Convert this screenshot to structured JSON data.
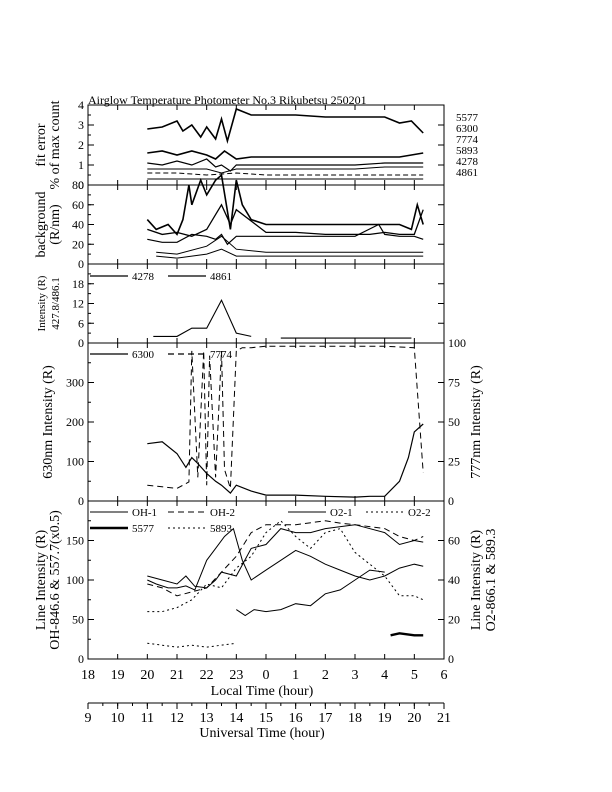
{
  "figure": {
    "title": "Airglow Temperature Photometer No.3   Rikubetsu     250201",
    "local_time_axis": {
      "label": "Local Time (hour)",
      "tick_labels": [
        "18",
        "19",
        "20",
        "21",
        "22",
        "23",
        "0",
        "1",
        "2",
        "3",
        "4",
        "5",
        "6"
      ]
    },
    "universal_time_axis": {
      "label": "Universal Time (hour)",
      "tick_labels": [
        "9",
        "10",
        "11",
        "12",
        "13",
        "14",
        "15",
        "16",
        "17",
        "18",
        "19",
        "20",
        "21"
      ]
    }
  },
  "chart_data": [
    {
      "type": "line",
      "panel": "fit-error",
      "ylabel": "fit error\n% of max count",
      "ylim": [
        0,
        4
      ],
      "ytick_labels": [
        "0",
        "1",
        "2",
        "3",
        "4"
      ],
      "right_labels": [
        "5577",
        "6300",
        "7774",
        "5893",
        "4278",
        "4861"
      ],
      "series": [
        {
          "name": "5577",
          "x": [
            20.0,
            20.5,
            21.0,
            21.2,
            21.5,
            21.8,
            22.0,
            22.3,
            22.5,
            22.7,
            23.0,
            23.5,
            24.0,
            25.0,
            26.0,
            27.0,
            28.0,
            28.5,
            28.9,
            29.3
          ],
          "y": [
            2.8,
            2.9,
            3.2,
            2.7,
            3.0,
            2.4,
            2.9,
            2.3,
            3.3,
            2.2,
            3.8,
            3.5,
            3.5,
            3.5,
            3.4,
            3.4,
            3.4,
            3.1,
            3.2,
            2.6
          ]
        },
        {
          "name": "6300",
          "x": [
            20.0,
            20.5,
            21.0,
            21.5,
            22.0,
            22.3,
            22.6,
            23.0,
            23.5,
            24.0,
            25.0,
            26.0,
            27.0,
            28.0,
            28.5,
            28.9,
            29.3
          ],
          "y": [
            1.6,
            1.7,
            1.5,
            1.7,
            1.5,
            1.3,
            1.7,
            1.3,
            1.4,
            1.4,
            1.4,
            1.4,
            1.4,
            1.4,
            1.4,
            1.5,
            1.6
          ]
        },
        {
          "name": "7774",
          "x": [
            20.0,
            20.5,
            21.0,
            21.5,
            22.0,
            22.3,
            22.5,
            22.8,
            23.0,
            24.0,
            25.0,
            26.0,
            27.0,
            28.0,
            28.5,
            29.3
          ],
          "y": [
            1.1,
            1.0,
            1.2,
            1.0,
            1.3,
            0.9,
            1.0,
            0.7,
            1.0,
            1.0,
            1.0,
            1.0,
            1.0,
            1.1,
            1.1,
            1.1
          ]
        },
        {
          "name": "5893",
          "x": [
            20.0,
            21.0,
            22.0,
            22.5,
            23.0,
            24.0,
            25.0,
            26.0,
            27.0,
            28.0,
            29.3
          ],
          "y": [
            0.8,
            0.8,
            0.8,
            0.6,
            0.8,
            0.8,
            0.8,
            0.8,
            0.8,
            0.9,
            0.9
          ]
        },
        {
          "name": "4278",
          "x": [
            20.0,
            21.0,
            22.0,
            23.0,
            24.0,
            25.0,
            26.0,
            27.0,
            28.0,
            29.3
          ],
          "y": [
            0.6,
            0.6,
            0.5,
            0.6,
            0.5,
            0.5,
            0.5,
            0.5,
            0.5,
            0.5
          ]
        },
        {
          "name": "4861",
          "x": [
            20.0,
            21.0,
            22.0,
            23.0,
            24.0,
            25.0,
            26.0,
            27.0,
            28.0,
            29.3
          ],
          "y": [
            0.3,
            0.3,
            0.3,
            0.3,
            0.3,
            0.3,
            0.3,
            0.3,
            0.3,
            0.3
          ]
        }
      ]
    },
    {
      "type": "line",
      "panel": "background",
      "ylabel": "background\n(R/nm)",
      "ylim": [
        0,
        80
      ],
      "ytick_labels": [
        "0",
        "20",
        "40",
        "60",
        "80"
      ],
      "series": [
        {
          "x": [
            20.0,
            20.3,
            20.7,
            21.0,
            21.2,
            21.4,
            21.5,
            21.8,
            22.0,
            22.3,
            22.5,
            22.8,
            23.0,
            23.2,
            23.5,
            24.0,
            25.0,
            26.0,
            27.0,
            27.5,
            28.0,
            28.5,
            28.9,
            29.1,
            29.3
          ],
          "y": [
            45,
            35,
            40,
            30,
            45,
            80,
            60,
            85,
            70,
            85,
            90,
            35,
            85,
            60,
            45,
            40,
            40,
            40,
            40,
            40,
            40,
            40,
            35,
            60,
            40
          ]
        },
        {
          "x": [
            20.0,
            20.5,
            21.0,
            21.5,
            22.0,
            22.3,
            22.5,
            22.8,
            23.0,
            24.0,
            25.0,
            26.0,
            27.0,
            27.5,
            28.0,
            28.5,
            29.0,
            29.3
          ],
          "y": [
            35,
            30,
            32,
            28,
            35,
            50,
            60,
            40,
            55,
            32,
            32,
            30,
            30,
            30,
            32,
            30,
            30,
            55
          ]
        },
        {
          "x": [
            20.0,
            20.5,
            21.0,
            21.5,
            22.0,
            22.3,
            22.5,
            22.7,
            23.0,
            24.0,
            25.0,
            26.0,
            27.0,
            27.8,
            28.0,
            28.5,
            29.0,
            29.3
          ],
          "y": [
            25,
            22,
            22,
            30,
            28,
            25,
            30,
            20,
            28,
            28,
            28,
            28,
            28,
            40,
            30,
            28,
            28,
            25
          ]
        },
        {
          "x": [
            20.3,
            21.0,
            22.0,
            22.5,
            23.0,
            24.0,
            25.0,
            26.0,
            27.0,
            28.0,
            29.3
          ],
          "y": [
            12,
            10,
            18,
            28,
            15,
            12,
            12,
            12,
            12,
            12,
            12
          ]
        },
        {
          "x": [
            20.3,
            21.0,
            22.0,
            22.5,
            23.0,
            24.0,
            25.0,
            26.0,
            27.0,
            28.0,
            29.3
          ],
          "y": [
            8,
            6,
            10,
            15,
            8,
            8,
            8,
            8,
            8,
            8,
            8
          ]
        }
      ]
    },
    {
      "type": "line",
      "panel": "intensity-4278-4861",
      "ylabel": "Intensity (R)\n427.8/486.1",
      "ylim": [
        0,
        24
      ],
      "ytick_labels": [
        "0",
        "6",
        "12",
        "18"
      ],
      "series": [
        {
          "name": "4278",
          "x": [
            20.2,
            21.0,
            21.5,
            22.0,
            22.5,
            23.0,
            23.5
          ],
          "y": [
            2,
            2,
            4.5,
            4.5,
            13,
            3,
            2
          ]
        },
        {
          "name": "4861",
          "x": [
            24.5,
            25.0,
            26.0,
            27.0,
            28.0,
            28.9
          ],
          "y": [
            1.5,
            1.5,
            1.5,
            1.5,
            1.5,
            1.5
          ]
        }
      ]
    },
    {
      "type": "line",
      "panel": "intensity-6300-7774",
      "ylabel": "630nm Intensity (R)",
      "ylabel_right": "777nm Intensity (R)",
      "ylim": [
        0,
        400
      ],
      "ylim_right": [
        0,
        100
      ],
      "ytick_labels": [
        "0",
        "100",
        "200",
        "300"
      ],
      "ytick_labels_right": [
        "0",
        "25",
        "50",
        "75",
        "100"
      ],
      "series": [
        {
          "name": "6300",
          "x": [
            20.0,
            20.5,
            21.0,
            21.3,
            21.5,
            21.7,
            22.0,
            22.3,
            22.5,
            22.8,
            23.0,
            23.5,
            24.0,
            25.0,
            26.0,
            27.0,
            27.5,
            28.0,
            28.5,
            28.8,
            29.0,
            29.3
          ],
          "y": [
            145,
            150,
            120,
            85,
            110,
            95,
            70,
            50,
            40,
            20,
            40,
            25,
            15,
            15,
            12,
            10,
            12,
            12,
            50,
            110,
            175,
            195
          ]
        },
        {
          "name": "7774",
          "x": [
            20.0,
            21.0,
            21.4,
            21.5,
            21.7,
            21.9,
            22.0,
            22.1,
            22.3,
            22.5,
            22.6,
            22.8,
            23.0,
            23.2,
            23.5,
            24.0,
            25.0,
            26.0,
            27.0,
            28.0,
            29.0,
            29.3
          ],
          "y": [
            10,
            8,
            12,
            95,
            15,
            95,
            10,
            92,
            15,
            95,
            20,
            8,
            95,
            97,
            97,
            98,
            98,
            98,
            98,
            98,
            97,
            18
          ]
        }
      ]
    },
    {
      "type": "line",
      "panel": "line-intensity",
      "ylabel": "Line Intensity (R)\nOH-846.6 & 557.7(x0.5)",
      "ylabel_right": "Line Intensity (R)\nO2-866.1 & 589.3",
      "ylim": [
        0,
        200
      ],
      "ylim_right": [
        0,
        80
      ],
      "ytick_labels": [
        "0",
        "50",
        "100",
        "150"
      ],
      "ytick_labels_right": [
        "0",
        "20",
        "40",
        "60"
      ],
      "legend": [
        "OH-1",
        "OH-2",
        "O2-1",
        "O2-2",
        "5577",
        "5893"
      ],
      "series": [
        {
          "name": "OH-1",
          "x": [
            20.0,
            20.5,
            21.0,
            21.3,
            21.6,
            22.0,
            22.3,
            22.5,
            23.0,
            23.5,
            24.0,
            24.5,
            25.0,
            25.5,
            26.0,
            27.0,
            28.0,
            28.5,
            29.0,
            29.3
          ],
          "y": [
            105,
            100,
            95,
            105,
            92,
            90,
            100,
            110,
            105,
            140,
            145,
            165,
            160,
            160,
            165,
            170,
            160,
            145,
            150,
            148
          ]
        },
        {
          "name": "OH-2",
          "x": [
            20.0,
            20.5,
            21.0,
            21.5,
            22.0,
            22.5,
            23.0,
            23.5,
            24.0,
            25.0,
            26.0,
            26.5,
            27.0,
            28.0,
            28.5,
            29.0,
            29.3
          ],
          "y": [
            95,
            90,
            80,
            85,
            90,
            110,
            130,
            160,
            170,
            170,
            175,
            172,
            170,
            165,
            155,
            150,
            155
          ]
        },
        {
          "name": "O2-1",
          "x": [
            23.0,
            23.3,
            23.6,
            24.0,
            24.5,
            25.0,
            25.5,
            26.0,
            26.5,
            27.0,
            27.5,
            28.0
          ],
          "y": [
            25,
            22,
            25,
            24,
            25,
            28,
            27,
            33,
            35,
            40,
            45,
            44
          ]
        },
        {
          "name": "O2-2",
          "x": [
            20.0,
            20.5,
            21.0,
            21.5,
            22.0,
            22.5,
            23.0
          ],
          "y": [
            8,
            7,
            6,
            7,
            6,
            7,
            8
          ]
        },
        {
          "name": "O2-2b",
          "x": [
            28.2,
            28.5,
            29.0,
            29.3
          ],
          "y": [
            12,
            13,
            12,
            12
          ]
        },
        {
          "name": "5577",
          "x": [
            20.0,
            20.5,
            21.0,
            21.5,
            22.0,
            22.5,
            23.0,
            23.5,
            24.0,
            24.5,
            25.0,
            25.5,
            26.0,
            26.5,
            27.0,
            27.5,
            28.0,
            28.5,
            29.0,
            29.3
          ],
          "y": [
            60,
            60,
            65,
            75,
            95,
            90,
            115,
            130,
            160,
            175,
            155,
            140,
            160,
            165,
            135,
            120,
            105,
            80,
            80,
            75
          ]
        },
        {
          "name": "5893",
          "x": [
            20.0,
            20.3,
            20.7,
            21.0,
            21.3,
            21.6,
            22.0,
            22.3,
            22.6,
            22.9,
            23.2,
            23.5,
            24.0,
            24.5,
            25.0,
            25.5,
            26.0,
            26.5,
            27.0,
            27.5,
            28.0,
            28.5,
            29.0,
            29.3
          ],
          "y": [
            40,
            38,
            36,
            36,
            37,
            35,
            50,
            56,
            62,
            66,
            50,
            40,
            45,
            50,
            55,
            52,
            48,
            45,
            42,
            40,
            42,
            46,
            48,
            47
          ]
        }
      ]
    }
  ]
}
